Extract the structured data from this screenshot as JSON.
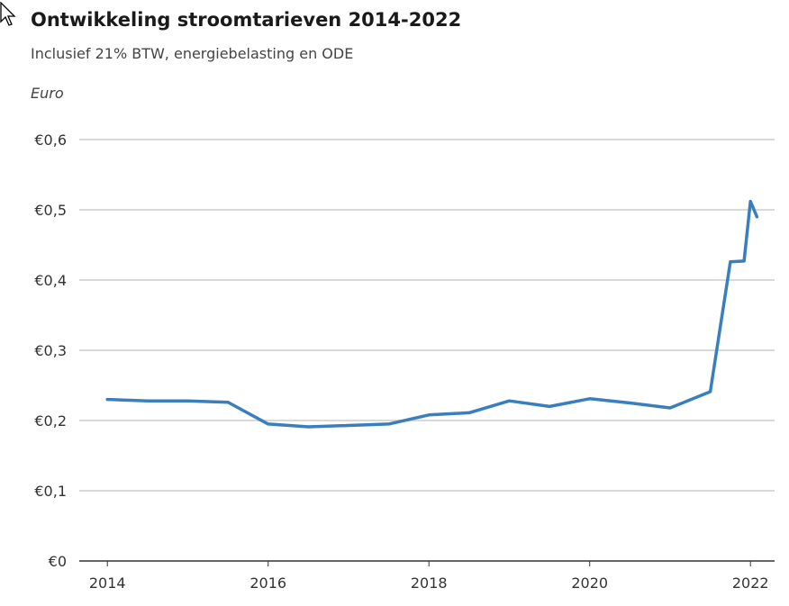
{
  "chart_data": {
    "type": "line",
    "title": "Ontwikkeling stroomtarieven 2014-2022",
    "subtitle": "Inclusief 21% BTW, energiebelasting en ODE",
    "ylabel": "Euro",
    "xlabel": "",
    "ylim": [
      0,
      0.6
    ],
    "xlim": [
      2013.65,
      2022.3
    ],
    "yticks": [
      {
        "value": 0,
        "label": "€0"
      },
      {
        "value": 0.1,
        "label": "€0,1"
      },
      {
        "value": 0.2,
        "label": "€0,2"
      },
      {
        "value": 0.3,
        "label": "€0,3"
      },
      {
        "value": 0.4,
        "label": "€0,4"
      },
      {
        "value": 0.5,
        "label": "€0,5"
      },
      {
        "value": 0.6,
        "label": "€0,6"
      }
    ],
    "xticks": [
      {
        "value": 2014,
        "label": "2014"
      },
      {
        "value": 2016,
        "label": "2016"
      },
      {
        "value": 2018,
        "label": "2018"
      },
      {
        "value": 2020,
        "label": "2020"
      },
      {
        "value": 2022,
        "label": "2022"
      }
    ],
    "grid": true,
    "legend": "none",
    "series": [
      {
        "color": "#3a7fbd",
        "x": [
          2014.0,
          2014.5,
          2015.0,
          2015.5,
          2016.0,
          2016.5,
          2017.0,
          2017.5,
          2018.0,
          2018.5,
          2019.0,
          2019.5,
          2020.0,
          2020.5,
          2021.0,
          2021.5,
          2021.75,
          2021.92,
          2022.0,
          2022.08
        ],
        "y": [
          0.23,
          0.228,
          0.228,
          0.226,
          0.195,
          0.191,
          0.193,
          0.195,
          0.208,
          0.211,
          0.228,
          0.22,
          0.231,
          0.225,
          0.218,
          0.241,
          0.426,
          0.427,
          0.512,
          0.49
        ]
      }
    ]
  },
  "colors": {
    "line": "#3a7fbd",
    "grid": "#d9d9d9",
    "axis": "#333333"
  },
  "icons": {
    "cursor": "mouse-pointer-icon"
  }
}
